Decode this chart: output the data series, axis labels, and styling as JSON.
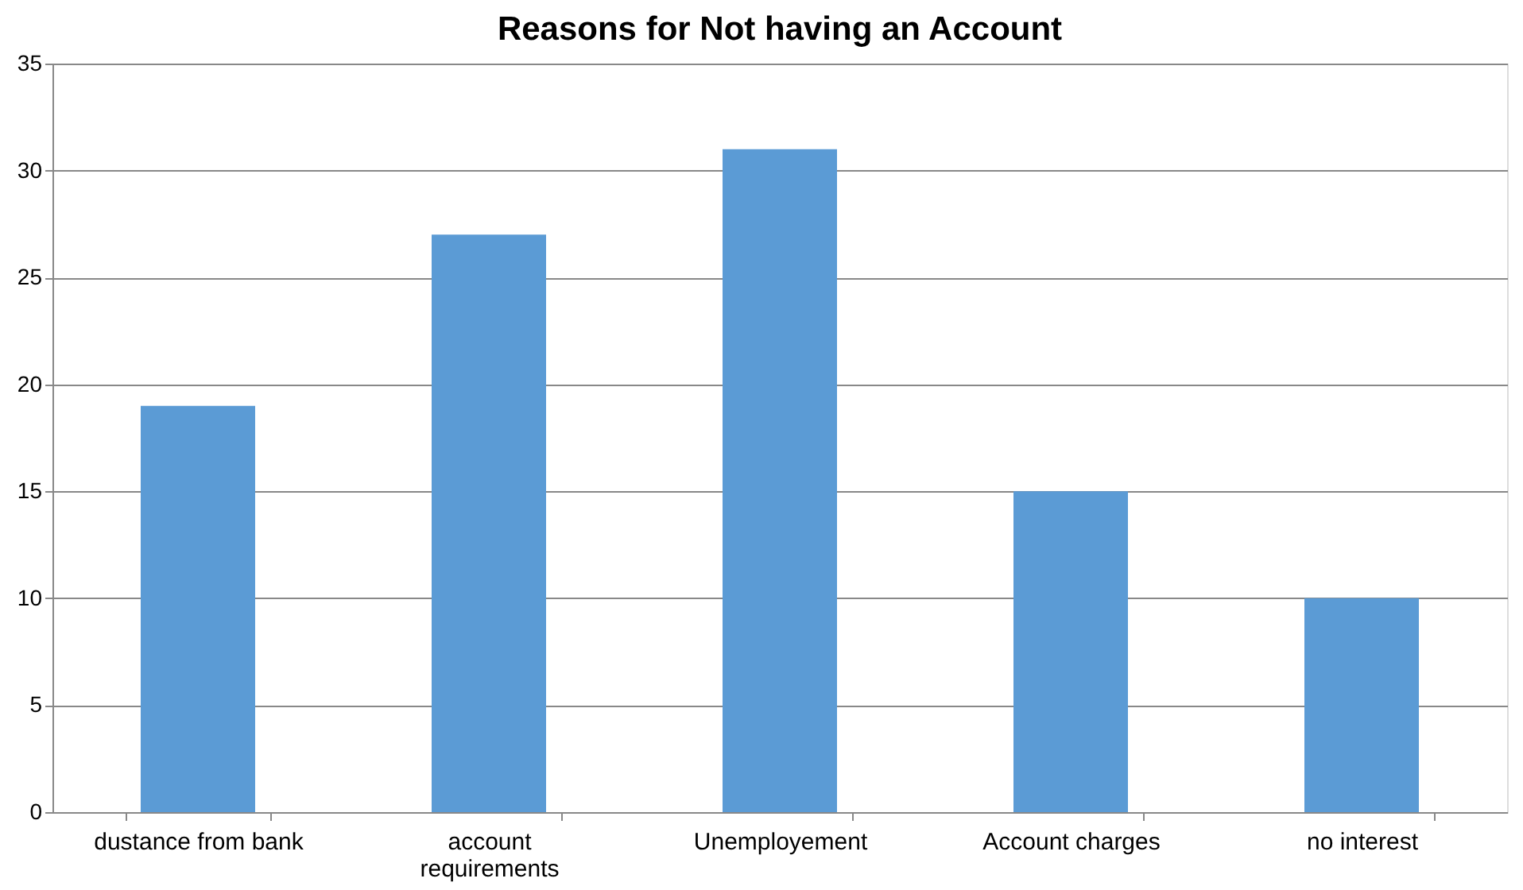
{
  "chart_data": {
    "type": "bar",
    "title": "Reasons for Not having an Account",
    "categories": [
      "dustance from bank",
      "account requirements",
      "Unemployement",
      "Account charges",
      "no interest"
    ],
    "values": [
      19,
      27,
      31,
      15,
      10
    ],
    "color": "#5b9bd5",
    "ylim": [
      0,
      35
    ],
    "yticks": [
      0,
      5,
      10,
      15,
      20,
      25,
      30,
      35
    ],
    "grid": "y"
  }
}
